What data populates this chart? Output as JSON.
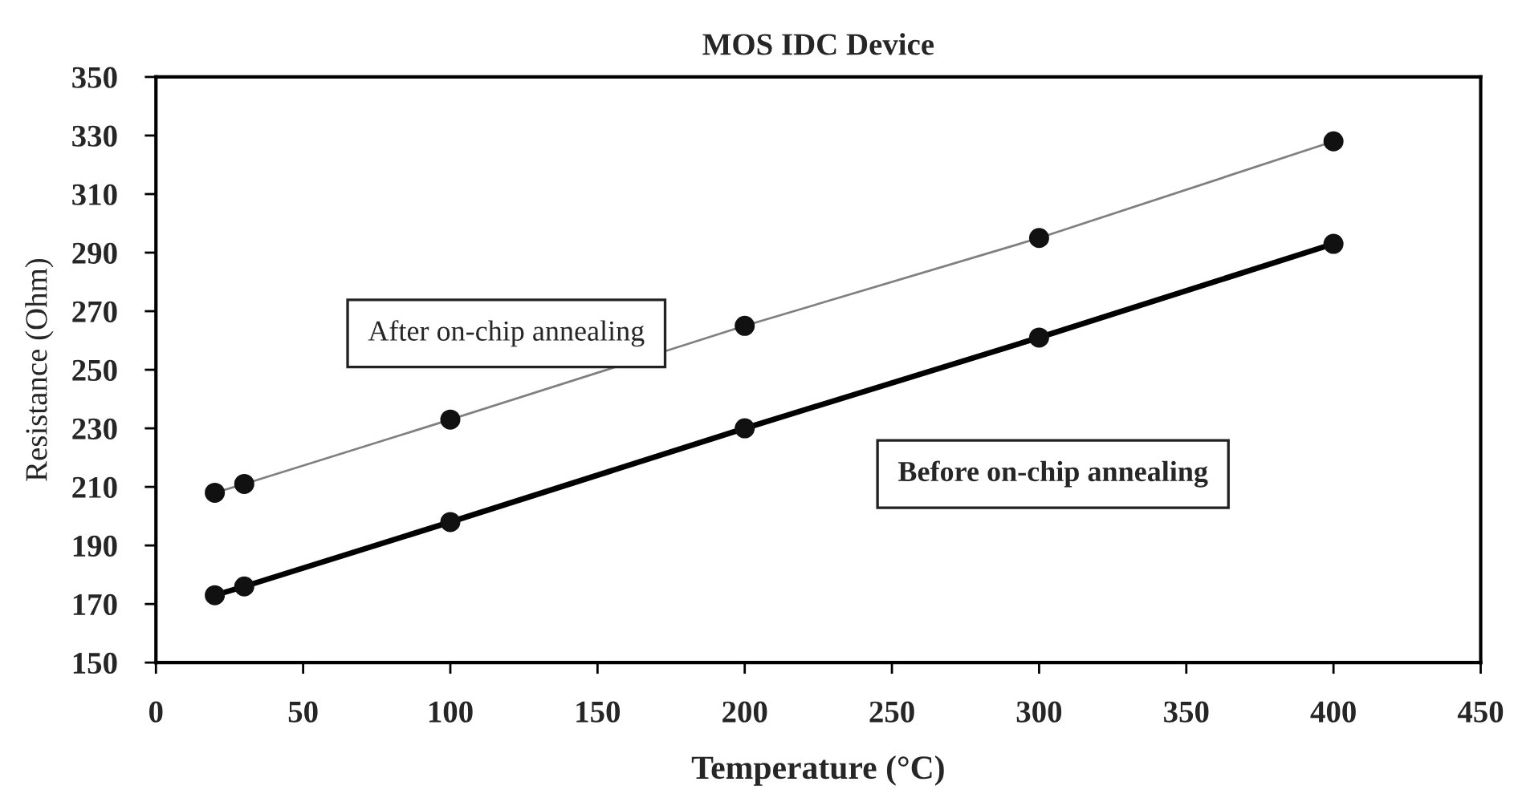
{
  "chart_data": {
    "type": "line",
    "title": "MOS IDC Device",
    "xlabel": "Temperature (°C)",
    "ylabel": "Resistance (Ohm)",
    "x": [
      20,
      30,
      100,
      200,
      300,
      400
    ],
    "series": [
      {
        "name": "After on-chip annealing",
        "color": "#808080",
        "values": [
          208,
          211,
          233,
          265,
          295,
          328
        ]
      },
      {
        "name": "Before on-chip annealing",
        "color": "#000000",
        "values": [
          173,
          176,
          198,
          230,
          261,
          293
        ]
      }
    ],
    "xlim": [
      0,
      450
    ],
    "xticks": [
      0,
      50,
      100,
      150,
      200,
      250,
      300,
      350,
      400,
      450
    ],
    "ylim": [
      150,
      350
    ],
    "yticks": [
      150,
      170,
      190,
      210,
      230,
      250,
      270,
      290,
      310,
      330,
      350
    ],
    "marker": "circle",
    "line_style": "solid",
    "grid": false,
    "legend": false
  }
}
